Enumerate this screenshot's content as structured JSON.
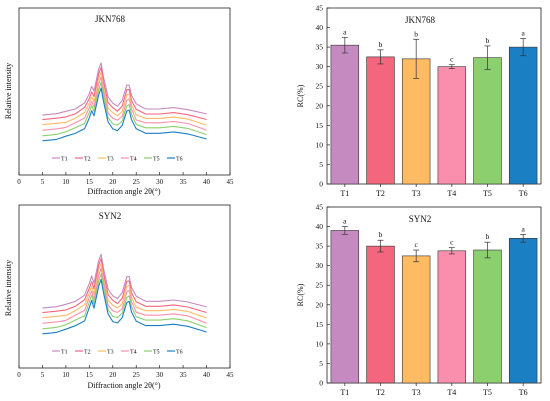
{
  "figure": {
    "panels": [
      {
        "id": "xrd-jkn768",
        "type": "line",
        "title": "JKN768",
        "xlabel": "Diffraction angle 2θ(°)",
        "ylabel": "Relative intensity",
        "xlim": [
          0,
          45
        ],
        "xticks": [
          "0",
          "5",
          "10",
          "15",
          "20",
          "25",
          "30",
          "35",
          "40",
          "45"
        ],
        "legend": [
          "T1",
          "T2",
          "T3",
          "T4",
          "T5",
          "T6"
        ],
        "legend_placement": "bottom"
      },
      {
        "id": "rc-jkn768",
        "type": "bar",
        "title": "JKN768",
        "ylabel": "RC(%)",
        "ylim": [
          0,
          45
        ]
      },
      {
        "id": "xrd-syn2",
        "type": "line",
        "title": "SYN2",
        "xlabel": "Diffraction angle 2θ(°)",
        "ylabel": "Relative intensity",
        "xlim": [
          0,
          45
        ],
        "xticks": [
          "0",
          "5",
          "10",
          "15",
          "20",
          "25",
          "30",
          "35",
          "40",
          "45"
        ],
        "legend": [
          "T1",
          "T2",
          "T3",
          "T4",
          "T5",
          "T6"
        ],
        "legend_placement": "bottom"
      },
      {
        "id": "rc-syn2",
        "type": "bar",
        "title": "SYN2",
        "ylabel": "RC(%)",
        "ylim": [
          0,
          45
        ]
      }
    ]
  },
  "colors": {
    "T1": "#c58ac0",
    "T2": "#f4667d",
    "T3": "#fdbb63",
    "T4": "#f98fad",
    "T5": "#8ccf6f",
    "T6": "#1b7fc4"
  },
  "chart_data": [
    {
      "type": "line",
      "title": "JKN768",
      "xlabel": "Diffraction angle 2θ(°)",
      "ylabel": "Relative intensity",
      "xlim": [
        0,
        45
      ],
      "grid": false,
      "legend_placement": "bottom",
      "series": [
        {
          "name": "T1",
          "offset": 5
        },
        {
          "name": "T2",
          "offset": 4
        },
        {
          "name": "T3",
          "offset": 3
        },
        {
          "name": "T4",
          "offset": 2
        },
        {
          "name": "T5",
          "offset": 1
        },
        {
          "name": "T6",
          "offset": 0
        }
      ],
      "x": [
        5,
        8,
        10,
        12,
        14,
        15,
        15.5,
        16,
        17,
        17.5,
        18,
        19,
        20,
        21,
        22,
        23,
        23.5,
        24,
        25,
        27,
        30,
        33,
        36,
        40
      ],
      "profile": [
        0.2,
        0.24,
        0.3,
        0.4,
        0.56,
        0.85,
        1.05,
        0.9,
        1.55,
        1.75,
        1.35,
        0.72,
        0.55,
        0.48,
        0.62,
        1.08,
        1.1,
        0.8,
        0.52,
        0.4,
        0.4,
        0.44,
        0.38,
        0.22
      ]
    },
    {
      "type": "bar",
      "title": "JKN768",
      "ylabel": "RC(%)",
      "ylim": [
        0,
        45
      ],
      "categories": [
        "T1",
        "T2",
        "T3",
        "T4",
        "T5",
        "T6"
      ],
      "values": [
        35.5,
        32.5,
        32.0,
        30.0,
        32.3,
        35.0
      ],
      "errors": [
        2.0,
        1.8,
        5.0,
        0.5,
        3.0,
        2.2
      ],
      "labels": [
        "a",
        "b",
        "b",
        "c",
        "b",
        "a"
      ]
    },
    {
      "type": "line",
      "title": "SYN2",
      "xlabel": "Diffraction angle 2θ(°)",
      "ylabel": "Relative intensity",
      "xlim": [
        0,
        45
      ],
      "grid": false,
      "legend_placement": "bottom",
      "series": [
        {
          "name": "T1",
          "offset": 5
        },
        {
          "name": "T2",
          "offset": 4
        },
        {
          "name": "T3",
          "offset": 3
        },
        {
          "name": "T4",
          "offset": 2
        },
        {
          "name": "T5",
          "offset": 1
        },
        {
          "name": "T6",
          "offset": 0
        }
      ],
      "x": [
        5,
        8,
        10,
        12,
        14,
        15,
        15.5,
        16,
        17,
        17.5,
        18,
        19,
        20,
        21,
        22,
        23,
        23.5,
        24,
        25,
        27,
        30,
        33,
        36,
        40
      ],
      "profile": [
        0.2,
        0.24,
        0.3,
        0.42,
        0.58,
        0.95,
        1.15,
        0.92,
        1.6,
        1.8,
        1.4,
        0.75,
        0.56,
        0.5,
        0.64,
        1.12,
        1.15,
        0.82,
        0.54,
        0.42,
        0.42,
        0.46,
        0.4,
        0.22
      ]
    },
    {
      "type": "bar",
      "title": "SYN2",
      "ylabel": "RC(%)",
      "ylim": [
        0,
        45
      ],
      "categories": [
        "T1",
        "T2",
        "T3",
        "T4",
        "T5",
        "T6"
      ],
      "values": [
        39.0,
        35.0,
        32.5,
        33.8,
        34.0,
        37.0
      ],
      "errors": [
        1.0,
        1.5,
        1.5,
        0.8,
        2.0,
        1.0
      ],
      "labels": [
        "a",
        "b",
        "c",
        "c",
        "b",
        "a"
      ]
    }
  ]
}
